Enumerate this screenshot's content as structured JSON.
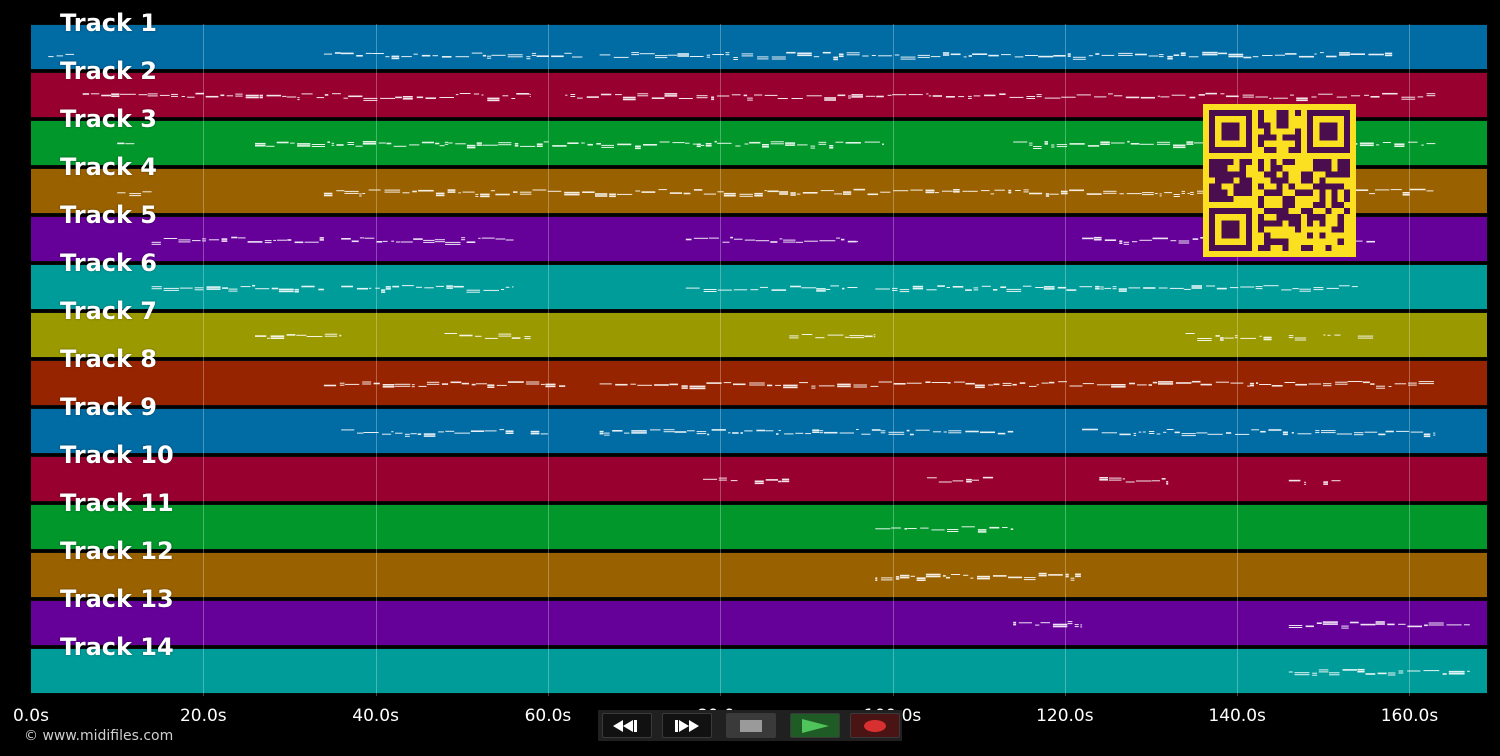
{
  "tracks": [
    {
      "label": "Track 1",
      "color": "#016ba3"
    },
    {
      "label": "Track 2",
      "color": "#98002f"
    },
    {
      "label": "Track 3",
      "color": "#01972b"
    },
    {
      "label": "Track 4",
      "color": "#9a6100"
    },
    {
      "label": "Track 5",
      "color": "#650199"
    },
    {
      "label": "Track 6",
      "color": "#009c9a"
    },
    {
      "label": "Track 7",
      "color": "#9b9900"
    },
    {
      "label": "Track 8",
      "color": "#962400"
    },
    {
      "label": "Track 9",
      "color": "#016ba3"
    },
    {
      "label": "Track 10",
      "color": "#98002f"
    },
    {
      "label": "Track 11",
      "color": "#01972b"
    },
    {
      "label": "Track 12",
      "color": "#9a6100"
    },
    {
      "label": "Track 13",
      "color": "#650199"
    },
    {
      "label": "Track 14",
      "color": "#009c9a"
    }
  ],
  "time_axis": {
    "ticks": [
      "0.0s",
      "20.0s",
      "40.0s",
      "60.0s",
      "80.0s",
      "100.0s",
      "120.0s",
      "140.0s",
      "160.0s"
    ],
    "tick_values": [
      0,
      20,
      40,
      60,
      80,
      100,
      120,
      140,
      160
    ],
    "max_seconds": 169
  },
  "note_segments": [
    [
      [
        2,
        5
      ],
      [
        34,
        64
      ],
      [
        66,
        158
      ]
    ],
    [
      [
        6,
        58
      ],
      [
        62,
        163
      ]
    ],
    [
      [
        10,
        12
      ],
      [
        26,
        99
      ],
      [
        114,
        163
      ]
    ],
    [
      [
        10,
        14
      ],
      [
        34,
        156
      ],
      [
        156,
        163
      ]
    ],
    [
      [
        14,
        34
      ],
      [
        36,
        56
      ],
      [
        76,
        96
      ],
      [
        122,
        156
      ]
    ],
    [
      [
        14,
        34
      ],
      [
        36,
        56
      ],
      [
        76,
        96
      ],
      [
        98,
        154
      ]
    ],
    [
      [
        26,
        36
      ],
      [
        48,
        58
      ],
      [
        88,
        98
      ],
      [
        134,
        144
      ],
      [
        146,
        148
      ],
      [
        150,
        152
      ],
      [
        154,
        156
      ]
    ],
    [
      [
        34,
        62
      ],
      [
        66,
        163
      ]
    ],
    [
      [
        36,
        56
      ],
      [
        58,
        60
      ],
      [
        66,
        114
      ],
      [
        122,
        163
      ]
    ],
    [
      [
        78,
        82
      ],
      [
        84,
        88
      ],
      [
        104,
        112
      ],
      [
        124,
        132
      ],
      [
        146,
        148
      ],
      [
        150,
        152
      ]
    ],
    [
      [
        98,
        114
      ]
    ],
    [
      [
        98,
        122
      ]
    ],
    [
      [
        114,
        122
      ],
      [
        146,
        167
      ]
    ],
    [
      [
        146,
        167
      ]
    ]
  ],
  "colors": {
    "background": "#000000",
    "qr_fg": "#4a0e4e",
    "qr_bg": "#fbe022"
  },
  "copyright": "© www.midifiles.com",
  "transport": {
    "rewind": "rewind-icon",
    "fast_forward": "fast-forward-icon",
    "stop": "stop-icon",
    "play": "play-icon",
    "record": "record-icon"
  }
}
